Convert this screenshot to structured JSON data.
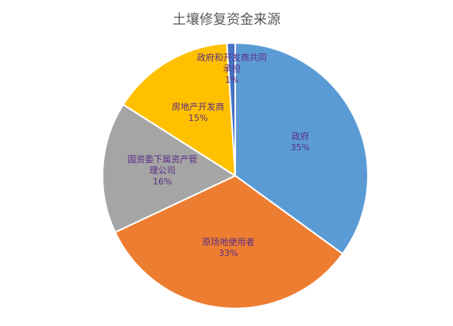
{
  "chart_data": {
    "type": "pie",
    "title": "土壤修复资金来源",
    "categories": [
      "政府",
      "原场地使用者",
      "国资委下属资产管理公司",
      "房地产开发商",
      "政府和开发商共同承担"
    ],
    "values": [
      35,
      33,
      16,
      15,
      1
    ],
    "value_labels": [
      "35%",
      "33%",
      "16%",
      "15%",
      "1%"
    ],
    "colors": [
      "#5b9bd5",
      "#ed7d31",
      "#a5a5a5",
      "#ffc000",
      "#4472c4"
    ]
  }
}
